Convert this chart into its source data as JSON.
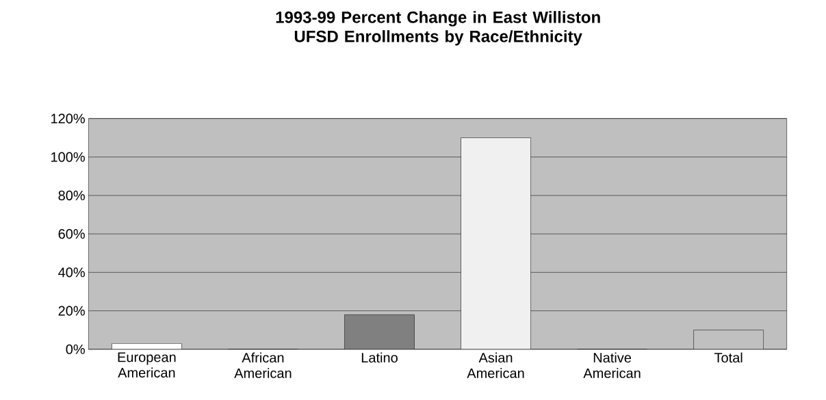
{
  "chart_data": {
    "type": "bar",
    "title": "1993-99 Percent Change in East Williston UFSD Enrollments by Race/Ethnicity",
    "categories": [
      "European American",
      "African American",
      "Latino",
      "Asian American",
      "Native American",
      "Total"
    ],
    "values": [
      3,
      0,
      18,
      110,
      0,
      10
    ],
    "colors": [
      "#ffffff",
      "#e0e0e0",
      "#808080",
      "#f0f0f0",
      "#a0a0a0",
      "#c0c0c0"
    ],
    "ylim": [
      0,
      120
    ],
    "yticks": [
      {
        "value": 0,
        "label": "0%"
      },
      {
        "value": 20,
        "label": "20%"
      },
      {
        "value": 40,
        "label": "40%"
      },
      {
        "value": 60,
        "label": "60%"
      },
      {
        "value": 80,
        "label": "80%"
      },
      {
        "value": 100,
        "label": "100%"
      },
      {
        "value": 120,
        "label": "120%"
      }
    ],
    "grid": "y"
  }
}
